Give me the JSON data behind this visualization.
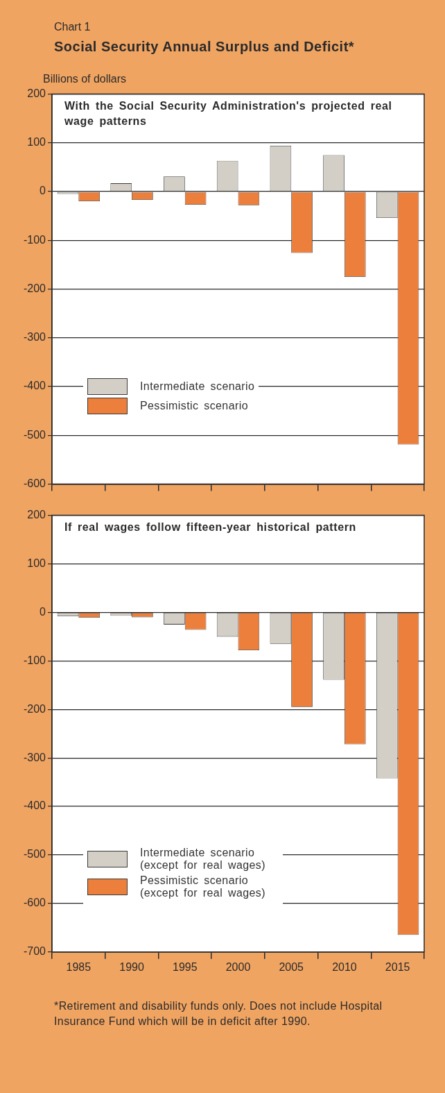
{
  "chart_data": [
    {
      "type": "bar",
      "title": "Social Security Annual Surplus and Deficit*",
      "subtitle": "With the Social Security Administration's projected real wage patterns",
      "ylabel": "Billions of dollars",
      "annotations": [
        "Chart 1"
      ],
      "categories": [
        "1985",
        "1990",
        "1995",
        "2000",
        "2005",
        "2010",
        "2015"
      ],
      "series": [
        {
          "name": "Intermediate scenario",
          "color": "#d4cfc6",
          "values": [
            -5,
            17,
            31,
            63,
            94,
            75,
            -54
          ]
        },
        {
          "name": "Pessimistic scenario",
          "color": "#ec7f3c",
          "values": [
            -20,
            -17,
            -27,
            -28,
            -126,
            -175,
            -519
          ]
        }
      ],
      "ylim": [
        -600,
        200
      ],
      "yticks": [
        -600,
        -500,
        -400,
        -300,
        -200,
        -100,
        0,
        100,
        200
      ],
      "grid": "y",
      "legend": "bottom left",
      "tick_labels": "y"
    },
    {
      "type": "bar",
      "subtitle": "If real wages follow fifteen-year historical pattern",
      "annotations": [
        "*Retirement and disability funds only.  Does not include Hospital Insurance Fund which will be in deficit after 1990."
      ],
      "categories": [
        "1985",
        "1990",
        "1995",
        "2000",
        "2005",
        "2010",
        "2015"
      ],
      "series": [
        {
          "name": "Intermediate scenario (except for real wages)",
          "color": "#d4cfc6",
          "values": [
            -8,
            -7,
            -25,
            -50,
            -65,
            -139,
            -342
          ]
        },
        {
          "name": "Pessimistic scenario (except for real wages)",
          "color": "#ec7f3c",
          "values": [
            -11,
            -10,
            -36,
            -78,
            -195,
            -272,
            -665
          ]
        }
      ],
      "ylim": [
        -700,
        200
      ],
      "yticks": [
        -700,
        -600,
        -500,
        -400,
        -300,
        -200,
        -100,
        0,
        100,
        200
      ],
      "grid": "y",
      "legend": "bottom left"
    }
  ]
}
